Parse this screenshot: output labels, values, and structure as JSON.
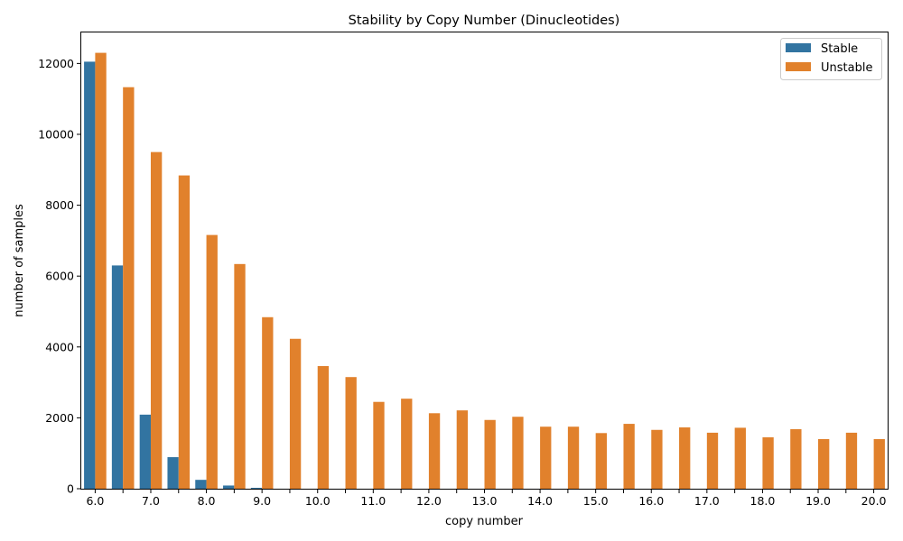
{
  "chart_data": {
    "type": "bar",
    "title": "Stability by Copy Number (Dinucleotides)",
    "xlabel": "copy number",
    "ylabel": "number of samples",
    "ylim": [
      0,
      12900
    ],
    "yticks": [
      0,
      2000,
      4000,
      6000,
      8000,
      10000,
      12000
    ],
    "x": [
      6.0,
      6.5,
      7.0,
      7.5,
      8.0,
      8.5,
      9.0,
      9.5,
      10.0,
      10.5,
      11.0,
      11.5,
      12.0,
      12.5,
      13.0,
      13.5,
      14.0,
      14.5,
      15.0,
      15.5,
      16.0,
      16.5,
      17.0,
      17.5,
      18.0,
      18.5,
      19.0,
      19.5,
      20.0
    ],
    "xtick_labels": [
      "6.0",
      "",
      "7.0",
      "",
      "8.0",
      "",
      "9.0",
      "",
      "10.0",
      "",
      "11.0",
      "",
      "12.0",
      "",
      "13.0",
      "",
      "14.0",
      "",
      "15.0",
      "",
      "16.0",
      "",
      "17.0",
      "",
      "18.0",
      "",
      "19.0",
      "",
      "20.0"
    ],
    "series": [
      {
        "name": "Stable",
        "color": "#3274a1",
        "values": [
          12050,
          6300,
          2090,
          890,
          250,
          90,
          25,
          0,
          0,
          0,
          0,
          0,
          0,
          0,
          0,
          0,
          0,
          0,
          0,
          0,
          0,
          0,
          0,
          0,
          0,
          0,
          0,
          0,
          0
        ]
      },
      {
        "name": "Unstable",
        "color": "#e1812c",
        "values": [
          12300,
          11330,
          9500,
          8840,
          7160,
          6340,
          4840,
          4230,
          3460,
          3150,
          2450,
          2540,
          2130,
          2210,
          1940,
          2030,
          1750,
          1750,
          1570,
          1830,
          1660,
          1730,
          1580,
          1720,
          1450,
          1680,
          1400,
          1580,
          1400
        ]
      }
    ],
    "legend": {
      "position": "top-right"
    },
    "grid": false
  }
}
